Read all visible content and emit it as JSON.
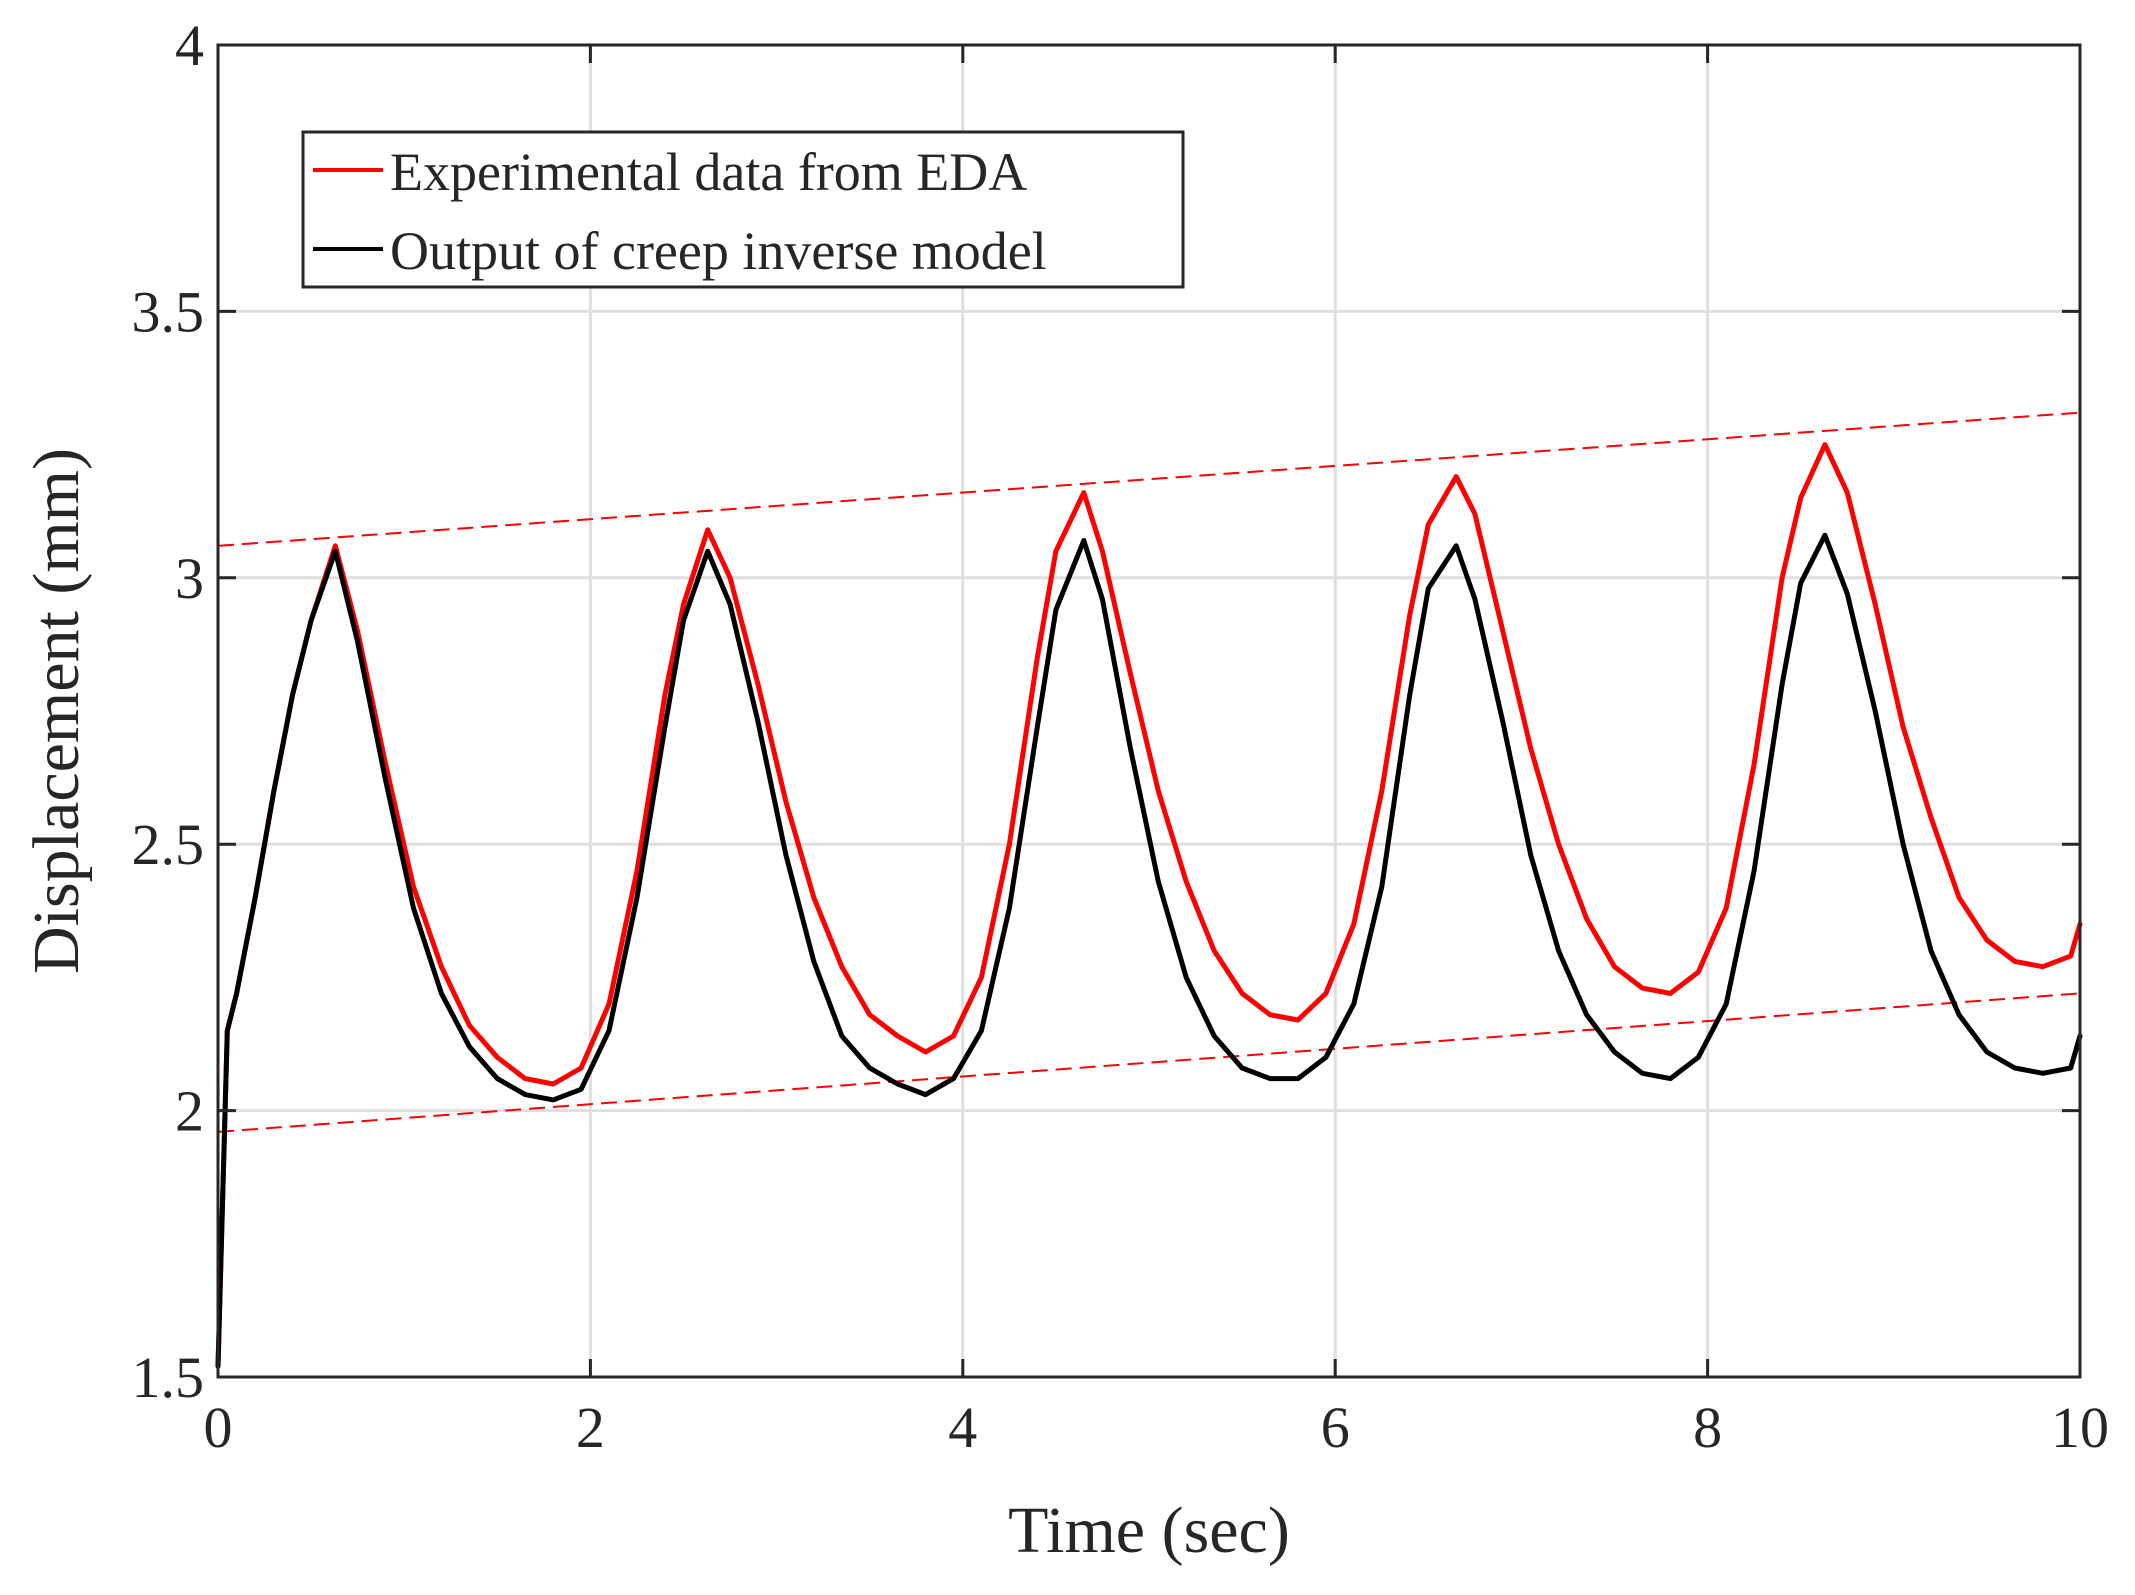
{
  "chart_data": {
    "type": "line",
    "title": "",
    "xlabel": "Time (sec)",
    "ylabel": "Displacement (mm)",
    "xlim": [
      0,
      10
    ],
    "ylim": [
      1.5,
      4
    ],
    "xticks": [
      0,
      2,
      4,
      6,
      8,
      10
    ],
    "yticks": [
      1.5,
      2,
      2.5,
      3,
      3.5,
      4
    ],
    "xtick_labels": [
      "0",
      "2",
      "4",
      "6",
      "8",
      "10"
    ],
    "ytick_labels": [
      "1.5",
      "2",
      "2.5",
      "3",
      "3.5",
      "4"
    ],
    "grid": true,
    "legend_position": "top-left",
    "series": [
      {
        "name": "Experimental data from EDA",
        "color": "#ff0000",
        "x": [
          0,
          0.05,
          0.1,
          0.2,
          0.3,
          0.4,
          0.5,
          0.63,
          0.75,
          0.9,
          1.05,
          1.2,
          1.35,
          1.5,
          1.65,
          1.8,
          1.95,
          2.1,
          2.25,
          2.4,
          2.5,
          2.63,
          2.75,
          2.9,
          3.05,
          3.2,
          3.35,
          3.5,
          3.65,
          3.8,
          3.95,
          4.1,
          4.25,
          4.4,
          4.5,
          4.65,
          4.75,
          4.9,
          5.05,
          5.2,
          5.35,
          5.5,
          5.65,
          5.8,
          5.95,
          6.1,
          6.25,
          6.4,
          6.5,
          6.65,
          6.75,
          6.9,
          7.05,
          7.2,
          7.35,
          7.5,
          7.65,
          7.8,
          7.95,
          8.1,
          8.25,
          8.4,
          8.5,
          8.63,
          8.75,
          8.9,
          9.05,
          9.2,
          9.35,
          9.5,
          9.65,
          9.8,
          9.95,
          10
        ],
        "values": [
          1.52,
          2.15,
          2.22,
          2.4,
          2.6,
          2.78,
          2.92,
          3.06,
          2.9,
          2.65,
          2.42,
          2.27,
          2.16,
          2.1,
          2.06,
          2.05,
          2.08,
          2.2,
          2.45,
          2.78,
          2.95,
          3.09,
          3.0,
          2.8,
          2.58,
          2.4,
          2.27,
          2.18,
          2.14,
          2.11,
          2.14,
          2.25,
          2.5,
          2.85,
          3.05,
          3.16,
          3.05,
          2.82,
          2.6,
          2.43,
          2.3,
          2.22,
          2.18,
          2.17,
          2.22,
          2.35,
          2.6,
          2.93,
          3.1,
          3.19,
          3.12,
          2.9,
          2.68,
          2.5,
          2.36,
          2.27,
          2.23,
          2.22,
          2.26,
          2.38,
          2.65,
          3.0,
          3.15,
          3.25,
          3.16,
          2.95,
          2.72,
          2.55,
          2.4,
          2.32,
          2.28,
          2.27,
          2.29,
          2.35
        ]
      },
      {
        "name": "Output of creep inverse model",
        "color": "#000000",
        "x": [
          0,
          0.05,
          0.1,
          0.2,
          0.3,
          0.4,
          0.5,
          0.63,
          0.75,
          0.9,
          1.05,
          1.2,
          1.35,
          1.5,
          1.65,
          1.8,
          1.95,
          2.1,
          2.25,
          2.4,
          2.5,
          2.63,
          2.75,
          2.9,
          3.05,
          3.2,
          3.35,
          3.5,
          3.65,
          3.8,
          3.95,
          4.1,
          4.25,
          4.4,
          4.5,
          4.65,
          4.75,
          4.9,
          5.05,
          5.2,
          5.35,
          5.5,
          5.65,
          5.8,
          5.95,
          6.1,
          6.25,
          6.4,
          6.5,
          6.65,
          6.75,
          6.9,
          7.05,
          7.2,
          7.35,
          7.5,
          7.65,
          7.8,
          7.95,
          8.1,
          8.25,
          8.4,
          8.5,
          8.63,
          8.75,
          8.9,
          9.05,
          9.2,
          9.35,
          9.5,
          9.65,
          9.8,
          9.95,
          10
        ],
        "values": [
          1.52,
          2.15,
          2.22,
          2.4,
          2.6,
          2.78,
          2.92,
          3.05,
          2.88,
          2.62,
          2.38,
          2.22,
          2.12,
          2.06,
          2.03,
          2.02,
          2.04,
          2.15,
          2.4,
          2.72,
          2.92,
          3.05,
          2.95,
          2.73,
          2.48,
          2.28,
          2.14,
          2.08,
          2.05,
          2.03,
          2.06,
          2.15,
          2.38,
          2.72,
          2.94,
          3.07,
          2.96,
          2.68,
          2.43,
          2.25,
          2.14,
          2.08,
          2.06,
          2.06,
          2.1,
          2.2,
          2.42,
          2.78,
          2.98,
          3.06,
          2.96,
          2.73,
          2.48,
          2.3,
          2.18,
          2.11,
          2.07,
          2.06,
          2.1,
          2.2,
          2.45,
          2.8,
          2.99,
          3.08,
          2.97,
          2.75,
          2.5,
          2.3,
          2.18,
          2.11,
          2.08,
          2.07,
          2.08,
          2.14
        ]
      }
    ],
    "reference_lines": [
      {
        "x": [
          0,
          10
        ],
        "y": [
          3.06,
          3.31
        ],
        "color": "#ff0000",
        "style": "dashed"
      },
      {
        "x": [
          0,
          10
        ],
        "y": [
          1.96,
          2.22
        ],
        "color": "#ff0000",
        "style": "dashed"
      }
    ],
    "legend": [
      {
        "label": "Experimental data from EDA",
        "color": "#ff0000"
      },
      {
        "label": "Output of creep inverse model",
        "color": "#000000"
      }
    ],
    "colors": {
      "axis": "#262626",
      "grid": "#dfdfdf",
      "background": "#ffffff"
    }
  }
}
